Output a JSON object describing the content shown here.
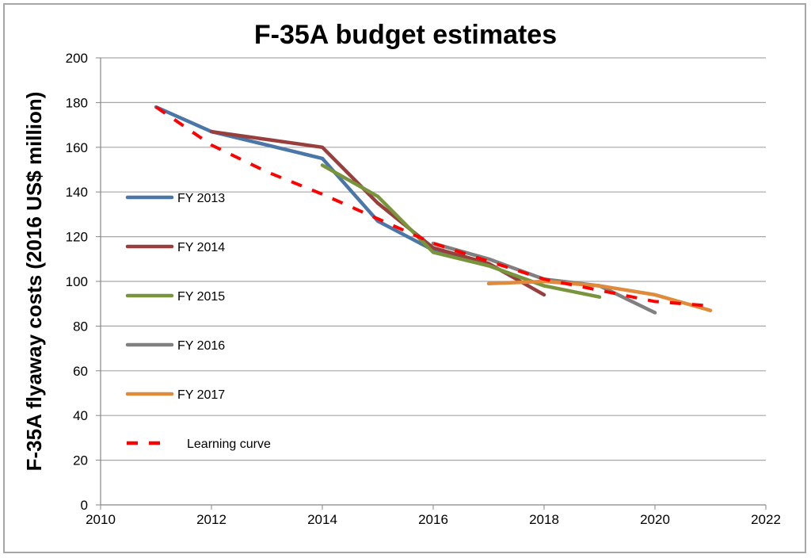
{
  "chart_data": {
    "type": "line",
    "title": "F-35A budget estimates",
    "xlabel": "",
    "ylabel": "F-35A flyaway costs (2016 US$ million)",
    "xlim": [
      2010,
      2022
    ],
    "ylim": [
      0,
      200
    ],
    "xticks": [
      2010,
      2012,
      2014,
      2016,
      2018,
      2020,
      2022
    ],
    "yticks": [
      0,
      20,
      40,
      60,
      80,
      100,
      120,
      140,
      160,
      180,
      200
    ],
    "grid": "horizontal",
    "legend_position": "left",
    "series": [
      {
        "name": "FY 2013",
        "color": "#4a76a8",
        "dash": false,
        "x": [
          2011,
          2012,
          2014,
          2015,
          2016,
          2017
        ],
        "values": [
          178,
          167,
          155,
          127,
          114,
          107
        ]
      },
      {
        "name": "FY 2014",
        "color": "#983f3d",
        "dash": false,
        "x": [
          2012,
          2014,
          2015,
          2016,
          2017,
          2018
        ],
        "values": [
          167,
          160,
          135,
          115,
          108,
          94
        ]
      },
      {
        "name": "FY 2015",
        "color": "#78953e",
        "dash": false,
        "x": [
          2014,
          2015,
          2016,
          2017,
          2018,
          2019
        ],
        "values": [
          152,
          138,
          113,
          107,
          98,
          93
        ]
      },
      {
        "name": "FY 2016",
        "color": "#808080",
        "dash": false,
        "x": [
          2016,
          2017,
          2018,
          2019,
          2020
        ],
        "values": [
          117,
          110,
          101,
          98,
          86
        ]
      },
      {
        "name": "FY 2017",
        "color": "#e08a3c",
        "dash": false,
        "x": [
          2017,
          2018,
          2019,
          2020,
          2021
        ],
        "values": [
          99,
          100,
          98,
          94,
          87
        ]
      },
      {
        "name": "Learning curve",
        "color": "#ff0000",
        "dash": true,
        "x": [
          2011,
          2012,
          2013,
          2014,
          2015,
          2016,
          2017,
          2018,
          2019,
          2020,
          2021
        ],
        "values": [
          178,
          161,
          149,
          139,
          128,
          117,
          109,
          101,
          96,
          91,
          89
        ]
      }
    ]
  }
}
